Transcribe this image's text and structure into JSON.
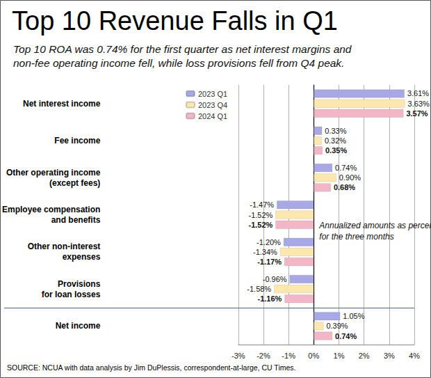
{
  "chart_data": {
    "type": "bar",
    "title": "Top 10 Revenue Falls in Q1",
    "subtitle": "Top 10 ROA was 0.74% for the first quarter as net interest margins and\nnon-fee operating income fell, while loss provisions fell from Q4 peak.",
    "annotation": "Annualized amounts as percent of average assets\nfor the three months",
    "source": "SOURCE: NCUA with data analysis by Jim DuPlessis, correspondent-at-large, CU Times.",
    "orientation": "horizontal",
    "categories": [
      "Net interest income",
      "Fee income",
      "Other operating income\n(except fees)",
      "Employee compensation\nand benefits",
      "Other non-interest\nexpenses",
      "Provisions\nfor loan losses",
      "Net income"
    ],
    "series": [
      {
        "name": "2023 Q1",
        "color": "#a8a8e6",
        "values": [
          3.61,
          0.33,
          0.74,
          -1.47,
          -1.2,
          -0.96,
          1.05
        ],
        "value_labels": [
          "3.61%",
          "0.33%",
          "0.74%",
          "-1.47%",
          "-1.20%",
          "-0.96%",
          "1.05%"
        ]
      },
      {
        "name": "2023 Q4",
        "color": "#fce7ae",
        "values": [
          3.63,
          0.32,
          0.9,
          -1.52,
          -1.34,
          -1.58,
          0.39
        ],
        "value_labels": [
          "3.63%",
          "0.32%",
          "0.90%",
          "-1.52%",
          "-1.34%",
          "-1.58%",
          "0.39%"
        ]
      },
      {
        "name": "2024 Q1",
        "color": "#f2b6c6",
        "values": [
          3.57,
          0.35,
          0.68,
          -1.52,
          -1.17,
          -1.16,
          0.74
        ],
        "value_labels": [
          "3.57%",
          "0.35%",
          "0.68%",
          "-1.52%",
          "-1.17%",
          "-1.16%",
          "0.74%"
        ]
      }
    ],
    "xlim": [
      -3,
      4
    ],
    "xticks": [
      {
        "value": -3,
        "label": "-3%"
      },
      {
        "value": -2,
        "label": "-2%"
      },
      {
        "value": -1,
        "label": "-1%"
      },
      {
        "value": 0,
        "label": "0%"
      },
      {
        "value": 1,
        "label": "1%"
      },
      {
        "value": 2,
        "label": "2%"
      },
      {
        "value": 3,
        "label": "3%"
      },
      {
        "value": 4,
        "label": "4%"
      }
    ],
    "grid": true,
    "legend": "top",
    "data_labels": true
  }
}
